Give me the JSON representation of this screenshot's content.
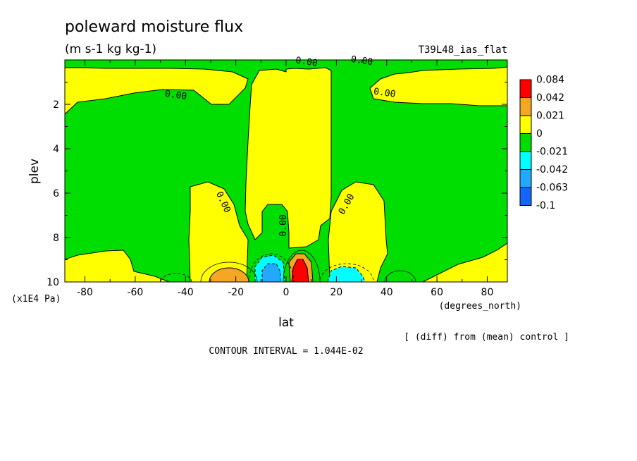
{
  "chart_data": {
    "type": "heatmap",
    "title": "poleward moisture flux",
    "units": "(m s-1 kg kg-1)",
    "model_label": "T39L48_ias_flat",
    "xlabel": "lat",
    "xunits": "(degrees_north)",
    "ylabel": "plev",
    "yunits": "(x1E4 Pa)",
    "xlim": [
      -88,
      88
    ],
    "ylim": [
      0,
      10
    ],
    "y_inverted": true,
    "x_ticks": [
      "-80",
      "-60",
      "-40",
      "-20",
      "0",
      "20",
      "40",
      "60",
      "80"
    ],
    "y_ticks": [
      "2",
      "4",
      "6",
      "8",
      "10"
    ],
    "colorbar": {
      "labels": [
        "0.084",
        "0.042",
        "0.021",
        "0",
        "-0.021",
        "-0.042",
        "-0.063",
        "-0.1"
      ],
      "colors": [
        "#ff0000",
        "#f5a623",
        "#ffff00",
        "#00dd00",
        "#00ffff",
        "#22a8ff",
        "#1464ff"
      ]
    },
    "contour_labels": [
      {
        "text": "0.00",
        "lat": 8,
        "plev": 0.05
      },
      {
        "text": "0.00",
        "lat": 30,
        "plev": 0.0
      },
      {
        "text": "0.00",
        "lat": -44,
        "plev": 1.55
      },
      {
        "text": "0.00",
        "lat": 39,
        "plev": 1.45
      },
      {
        "text": "0.00",
        "lat": -26,
        "plev": 6.3
      },
      {
        "text": "0.00",
        "lat": 25,
        "plev": 6.4
      },
      {
        "text": "0.00",
        "lat": 0,
        "plev": 7.3
      }
    ],
    "contour_interval": "CONTOUR INTERVAL = 1.044E-02",
    "note": "[ (diff) from (mean) control ]"
  }
}
